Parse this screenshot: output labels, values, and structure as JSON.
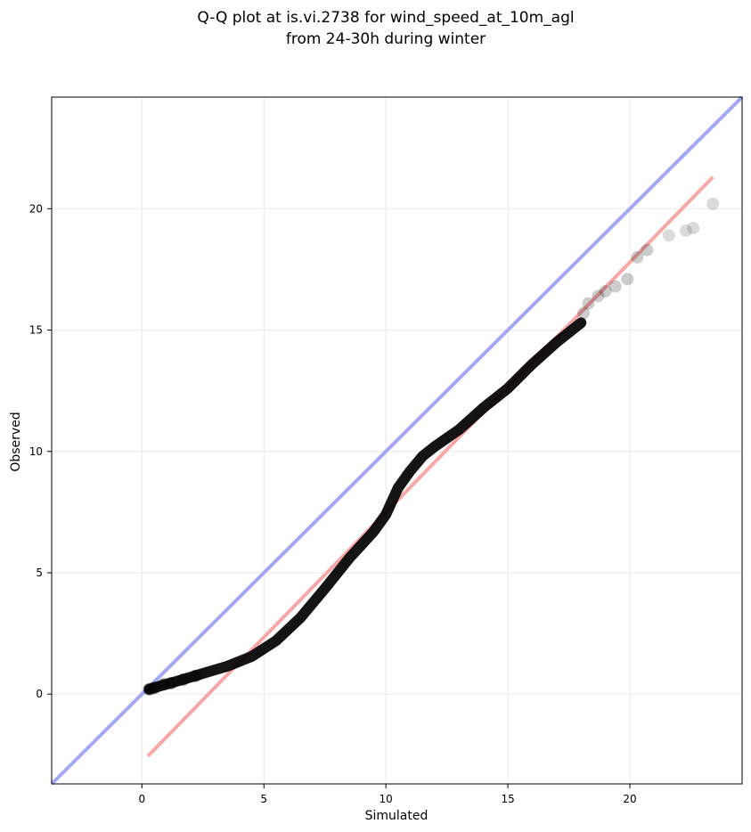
{
  "chart_data": {
    "type": "scatter",
    "title_lines": [
      "Q-Q plot at is.vi.2738 for wind_speed_at_10m_agl",
      "from 24-30h during winter"
    ],
    "xlabel": "Simulated",
    "ylabel": "Observed",
    "xlim": [
      -3.7,
      24.6
    ],
    "ylim": [
      -3.7,
      24.6
    ],
    "x_ticks": [
      0,
      5,
      10,
      15,
      20
    ],
    "y_ticks": [
      0,
      5,
      10,
      15,
      20
    ],
    "grid": true,
    "colors": {
      "points": "#000000",
      "identity_line": "#a6a6f2",
      "fit_line": "#f6a7a7",
      "grid": "#ececec",
      "axes": "#000000"
    },
    "reference_lines": {
      "identity": {
        "x": [
          -3.7,
          24.6
        ],
        "y": [
          -3.7,
          24.6
        ]
      },
      "fit": {
        "x": [
          0.25,
          23.4
        ],
        "y": [
          -2.55,
          21.3
        ]
      }
    },
    "quantile_curve": [
      [
        0.3,
        0.2
      ],
      [
        0.8,
        0.35
      ],
      [
        1.5,
        0.55
      ],
      [
        2.5,
        0.85
      ],
      [
        3.5,
        1.15
      ],
      [
        4.5,
        1.55
      ],
      [
        5.5,
        2.2
      ],
      [
        6.5,
        3.15
      ],
      [
        7.5,
        4.35
      ],
      [
        8.5,
        5.6
      ],
      [
        9.5,
        6.7
      ],
      [
        10.0,
        7.4
      ],
      [
        10.5,
        8.5
      ],
      [
        11.0,
        9.2
      ],
      [
        11.5,
        9.8
      ],
      [
        12.0,
        10.2
      ],
      [
        13.0,
        10.9
      ],
      [
        14.0,
        11.8
      ],
      [
        15.0,
        12.6
      ],
      [
        16.0,
        13.6
      ],
      [
        17.0,
        14.5
      ],
      [
        18.0,
        15.3
      ]
    ],
    "points": [
      [
        0.3,
        0.2
      ],
      [
        0.5,
        0.25
      ],
      [
        0.9,
        0.4
      ],
      [
        1.2,
        0.45
      ],
      [
        1.7,
        0.6
      ],
      [
        2.2,
        0.75
      ],
      [
        18.1,
        15.7
      ],
      [
        18.3,
        16.1
      ],
      [
        18.7,
        16.4
      ],
      [
        19.0,
        16.6
      ],
      [
        19.4,
        16.8
      ],
      [
        19.9,
        17.1
      ],
      [
        20.3,
        18.0
      ],
      [
        20.7,
        18.3
      ],
      [
        21.6,
        18.9
      ],
      [
        22.3,
        19.1
      ],
      [
        22.6,
        19.2
      ],
      [
        23.4,
        20.2
      ]
    ]
  }
}
